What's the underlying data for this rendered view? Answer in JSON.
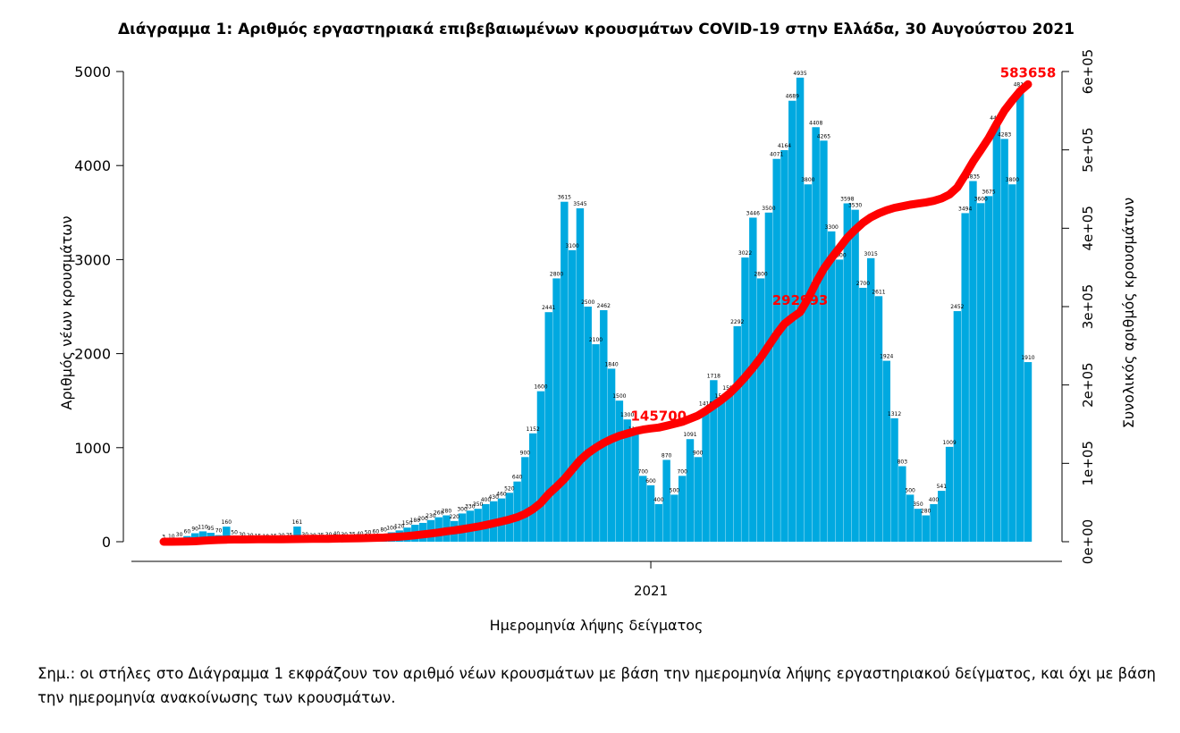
{
  "chart_data": {
    "type": "bar",
    "title": "Διάγραμμα 1: Αριθμός εργαστηριακά επιβεβαιωμένων κρουσμάτων COVID-19 στην Ελλάδα, 30 Αυγούστου 2021",
    "x_label": "Ημερομηνία λήψης δείγματος",
    "y_label": "Αριθμός νέων κρουσμάτων",
    "y2_label": "Συνολικός αριθμός κρουσμάτων",
    "categories": [
      null,
      null,
      null,
      null,
      null,
      null,
      null,
      null,
      null,
      null,
      null,
      null,
      null,
      null,
      null,
      null,
      null,
      null,
      null,
      null,
      null,
      null,
      null,
      null,
      null,
      null,
      null,
      null,
      null,
      null,
      null,
      null,
      null,
      null,
      null,
      null,
      null,
      null,
      null,
      null,
      null,
      null,
      null,
      null,
      null,
      null,
      null,
      null,
      null,
      null,
      null,
      null,
      null,
      null,
      null,
      null,
      null,
      null,
      null,
      null,
      null,
      null,
      null,
      null,
      null,
      null,
      null,
      null,
      null,
      null,
      null,
      null,
      null,
      null,
      null,
      null,
      null,
      null,
      null,
      null,
      null,
      null,
      null,
      null,
      null,
      null,
      null,
      null,
      null,
      null,
      null,
      null,
      null,
      null,
      null,
      null,
      null,
      null,
      null,
      null,
      null,
      null,
      null,
      null,
      null,
      null,
      null,
      null,
      null,
      null,
      null
    ],
    "xlim": [
      0,
      110
    ],
    "xticks": [
      {
        "value": 62,
        "label": "2021"
      }
    ],
    "ylim": [
      0,
      5000
    ],
    "yticks": [
      0,
      1000,
      2000,
      3000,
      4000,
      5000
    ],
    "y2lim": [
      0,
      600000
    ],
    "y2ticks": [
      {
        "value": 0,
        "label": "0e+00"
      },
      {
        "value": 100000,
        "label": "1e+05"
      },
      {
        "value": 200000,
        "label": "2e+05"
      },
      {
        "value": 300000,
        "label": "3e+05"
      },
      {
        "value": 400000,
        "label": "4e+05"
      },
      {
        "value": 500000,
        "label": "5e+05"
      },
      {
        "value": 600000,
        "label": "6e+05"
      }
    ],
    "series": [
      {
        "type": "bar",
        "color": "#00a9e0",
        "values": [
          3,
          10,
          30,
          60,
          90,
          110,
          95,
          70,
          160,
          50,
          30,
          20,
          15,
          10,
          15,
          20,
          25,
          161,
          30,
          20,
          25,
          30,
          40,
          30,
          35,
          40,
          50,
          60,
          80,
          100,
          120,
          150,
          180,
          200,
          230,
          260,
          280,
          220,
          300,
          330,
          350,
          400,
          430,
          460,
          520,
          640,
          900,
          1152,
          1600,
          2441,
          2800,
          3615,
          3100,
          3545,
          2500,
          2100,
          2462,
          1840,
          1500,
          1300,
          1152,
          700,
          600,
          400,
          870,
          500,
          700,
          1091,
          900,
          1419,
          1718,
          1500,
          1587,
          2292,
          3022,
          3446,
          2800,
          3500,
          4071,
          4164,
          4689,
          4935,
          3800,
          4408,
          4265,
          3300,
          3000,
          3598,
          3530,
          2700,
          3015,
          2611,
          1924,
          1312,
          803,
          500,
          350,
          280,
          400,
          541,
          1009,
          2452,
          3494,
          3835,
          3600,
          3675,
          4459,
          4283,
          3800,
          4816,
          1910
        ]
      },
      {
        "type": "line",
        "axis": "y2",
        "color": "#ff0000",
        "values": [
          0,
          10,
          100,
          300,
          600,
          1200,
          1800,
          2300,
          2600,
          2800,
          2900,
          3000,
          3050,
          3100,
          3150,
          3200,
          3300,
          3400,
          3500,
          3600,
          3700,
          3800,
          3950,
          4100,
          4300,
          4500,
          4700,
          5000,
          5300,
          5800,
          6400,
          7200,
          8200,
          9300,
          10500,
          11800,
          13300,
          14500,
          16000,
          17600,
          19300,
          21300,
          23500,
          25800,
          28300,
          31300,
          35500,
          41500,
          49500,
          61000,
          70000,
          80000,
          92000,
          104000,
          113000,
          120000,
          126000,
          131000,
          135000,
          138000,
          141000,
          143000,
          144500,
          145700,
          148000,
          150500,
          153000,
          157000,
          161000,
          167000,
          174000,
          181000,
          189000,
          199000,
          210000,
          222000,
          235000,
          250000,
          265000,
          278000,
          286000,
          292993,
          310000,
          330000,
          348000,
          362000,
          375000,
          388000,
          398000,
          407000,
          414000,
          419000,
          423000,
          426000,
          428000,
          430000,
          431500,
          433000,
          435000,
          438000,
          443000,
          452000,
          468000,
          485000,
          500000,
          515000,
          533000,
          550000,
          563000,
          575000,
          583658
        ],
        "value_labels": [
          null,
          null,
          null,
          null,
          null,
          null,
          null,
          null,
          null,
          null,
          null,
          null,
          null,
          null,
          null,
          null,
          null,
          null,
          null,
          null,
          null,
          null,
          null,
          null,
          null,
          null,
          null,
          null,
          null,
          null,
          null,
          null,
          null,
          null,
          null,
          null,
          null,
          null,
          null,
          null,
          null,
          null,
          null,
          null,
          null,
          null,
          null,
          null,
          null,
          null,
          null,
          null,
          null,
          null,
          null,
          null,
          null,
          null,
          null,
          null,
          null,
          null,
          null,
          "145700",
          null,
          null,
          null,
          null,
          null,
          null,
          null,
          null,
          null,
          null,
          null,
          null,
          null,
          null,
          null,
          null,
          null,
          "292993",
          null,
          null,
          null,
          null,
          null,
          null,
          null,
          null,
          null,
          null,
          null,
          null,
          null,
          null,
          null,
          null,
          null,
          null,
          null,
          null,
          null,
          null,
          null,
          null,
          null,
          null,
          null,
          null,
          "583658"
        ]
      }
    ]
  },
  "note": "Σημ.: οι στήλες στο Διάγραμμα 1 εκφράζουν τον αριθμό νέων κρουσμάτων με βάση την ημερομηνία λήψης εργαστηριακού δείγματος, και όχι με βάση την ημερομηνία ανακοίνωσης των κρουσμάτων."
}
